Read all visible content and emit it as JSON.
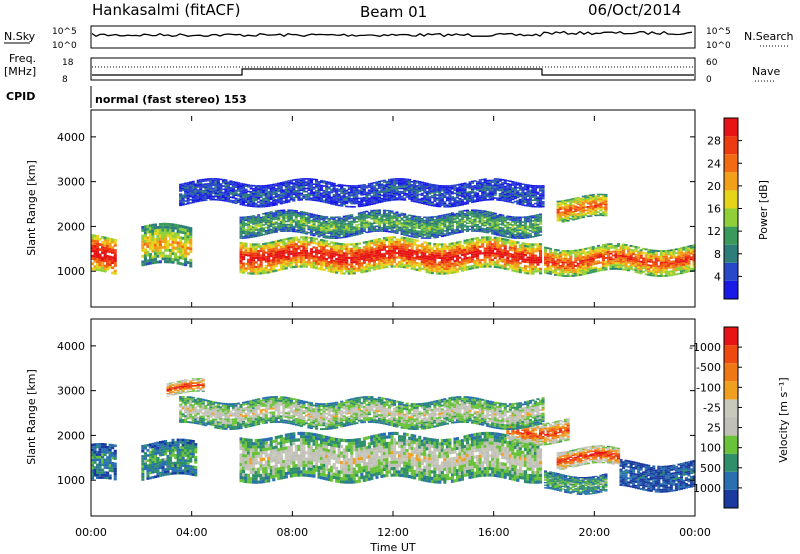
{
  "header": {
    "station": "Hankasalmi (fitACF)",
    "beam": "Beam 01",
    "date": "06/Oct/2014"
  },
  "aux_panel": {
    "nsky_label": "N.Sky",
    "nsearch_label": "N.Search",
    "nsky_ticks": [
      "10^5",
      "10^0"
    ],
    "nsearch_ticks": [
      "10^5",
      "10^0"
    ],
    "freq_label_1": "Freq.",
    "freq_label_2": "[MHz]",
    "freq_ticks": [
      "18",
      "8"
    ],
    "nave_label": "Nave",
    "nave_ticks": [
      "60",
      "0"
    ],
    "cpid_label": "CPID",
    "cpid_text": "normal (fast stereo) 153"
  },
  "chart_data": [
    {
      "type": "heatmap",
      "name": "power",
      "ylabel": "Slant Range [km]",
      "ylim": [
        200,
        4600
      ],
      "yticks": [
        1000,
        2000,
        3000,
        4000
      ],
      "xlim": [
        0,
        24
      ],
      "colorbar_label": "Power [dB]",
      "colorbar_ticks": [
        "4",
        "8",
        "12",
        "16",
        "20",
        "24",
        "28"
      ],
      "colors": [
        "#1a1ae6",
        "#2847c9",
        "#2e7d7a",
        "#3a9a5c",
        "#8fcf3a",
        "#e6d41a",
        "#f2a01a",
        "#f26a14",
        "#ee3a10",
        "#e61414"
      ],
      "features": [
        {
          "t0": 5.9,
          "t1": 17.9,
          "r_center": 1350,
          "r_width": 700,
          "level": 0.85
        },
        {
          "t0": 5.9,
          "t1": 17.9,
          "r_center": 2050,
          "r_width": 500,
          "level": 0.35
        },
        {
          "t0": 0.0,
          "t1": 1.0,
          "r_center": 1350,
          "r_width": 800,
          "level": 0.9
        },
        {
          "t0": 2.0,
          "t1": 4.0,
          "r_center": 1550,
          "r_width": 900,
          "level": 0.55
        },
        {
          "t0": 18.0,
          "t1": 24.0,
          "r_center": 1250,
          "r_width": 600,
          "level": 0.75
        },
        {
          "t0": 18.5,
          "t1": 20.5,
          "r_center": 2400,
          "r_width": 500,
          "level": 0.7
        },
        {
          "t0": 3.5,
          "t1": 18.0,
          "r_center": 2750,
          "r_width": 500,
          "level": 0.15
        }
      ]
    },
    {
      "type": "heatmap",
      "name": "velocity",
      "ylabel": "Slant Range [km]",
      "xlabel": "Time UT",
      "ylim": [
        200,
        4600
      ],
      "yticks": [
        1000,
        2000,
        3000,
        4000
      ],
      "xlim": [
        0,
        24
      ],
      "xticks": [
        "00:00",
        "04:00",
        "08:00",
        "12:00",
        "16:00",
        "20:00",
        "00:00"
      ],
      "colorbar_label": "Velocity [m s⁻¹]",
      "colorbar_ticks": [
        "1000",
        "500",
        "100",
        "25",
        "-25",
        "-100",
        "-500",
        "-1000"
      ],
      "colors": [
        "#1a3aa0",
        "#2a70b0",
        "#2f8f6a",
        "#6ac23a",
        "#c0c0b8",
        "#c8c8bc",
        "#f0a020",
        "#f07814",
        "#ee4a10",
        "#e61414"
      ],
      "features": [
        {
          "t0": 5.9,
          "t1": 17.9,
          "r_center": 1500,
          "r_width": 1000,
          "level": 0.45
        },
        {
          "t0": 0.0,
          "t1": 1.0,
          "r_center": 1350,
          "r_width": 800,
          "level": 0.2
        },
        {
          "t0": 2.0,
          "t1": 4.2,
          "r_center": 1450,
          "r_width": 800,
          "level": 0.25
        },
        {
          "t0": 18.0,
          "t1": 20.5,
          "r_center": 950,
          "r_width": 400,
          "level": 0.3
        },
        {
          "t0": 21.0,
          "t1": 24.0,
          "r_center": 1100,
          "r_width": 600,
          "level": 0.1
        },
        {
          "t0": 18.5,
          "t1": 21.0,
          "r_center": 1500,
          "r_width": 400,
          "level": 0.8
        },
        {
          "t0": 16.5,
          "t1": 19.0,
          "r_center": 2100,
          "r_width": 500,
          "level": 0.75
        },
        {
          "t0": 3.0,
          "t1": 4.5,
          "r_center": 3050,
          "r_width": 300,
          "level": 0.8
        },
        {
          "t0": 3.5,
          "t1": 18.0,
          "r_center": 2500,
          "r_width": 600,
          "level": 0.45
        }
      ]
    }
  ]
}
